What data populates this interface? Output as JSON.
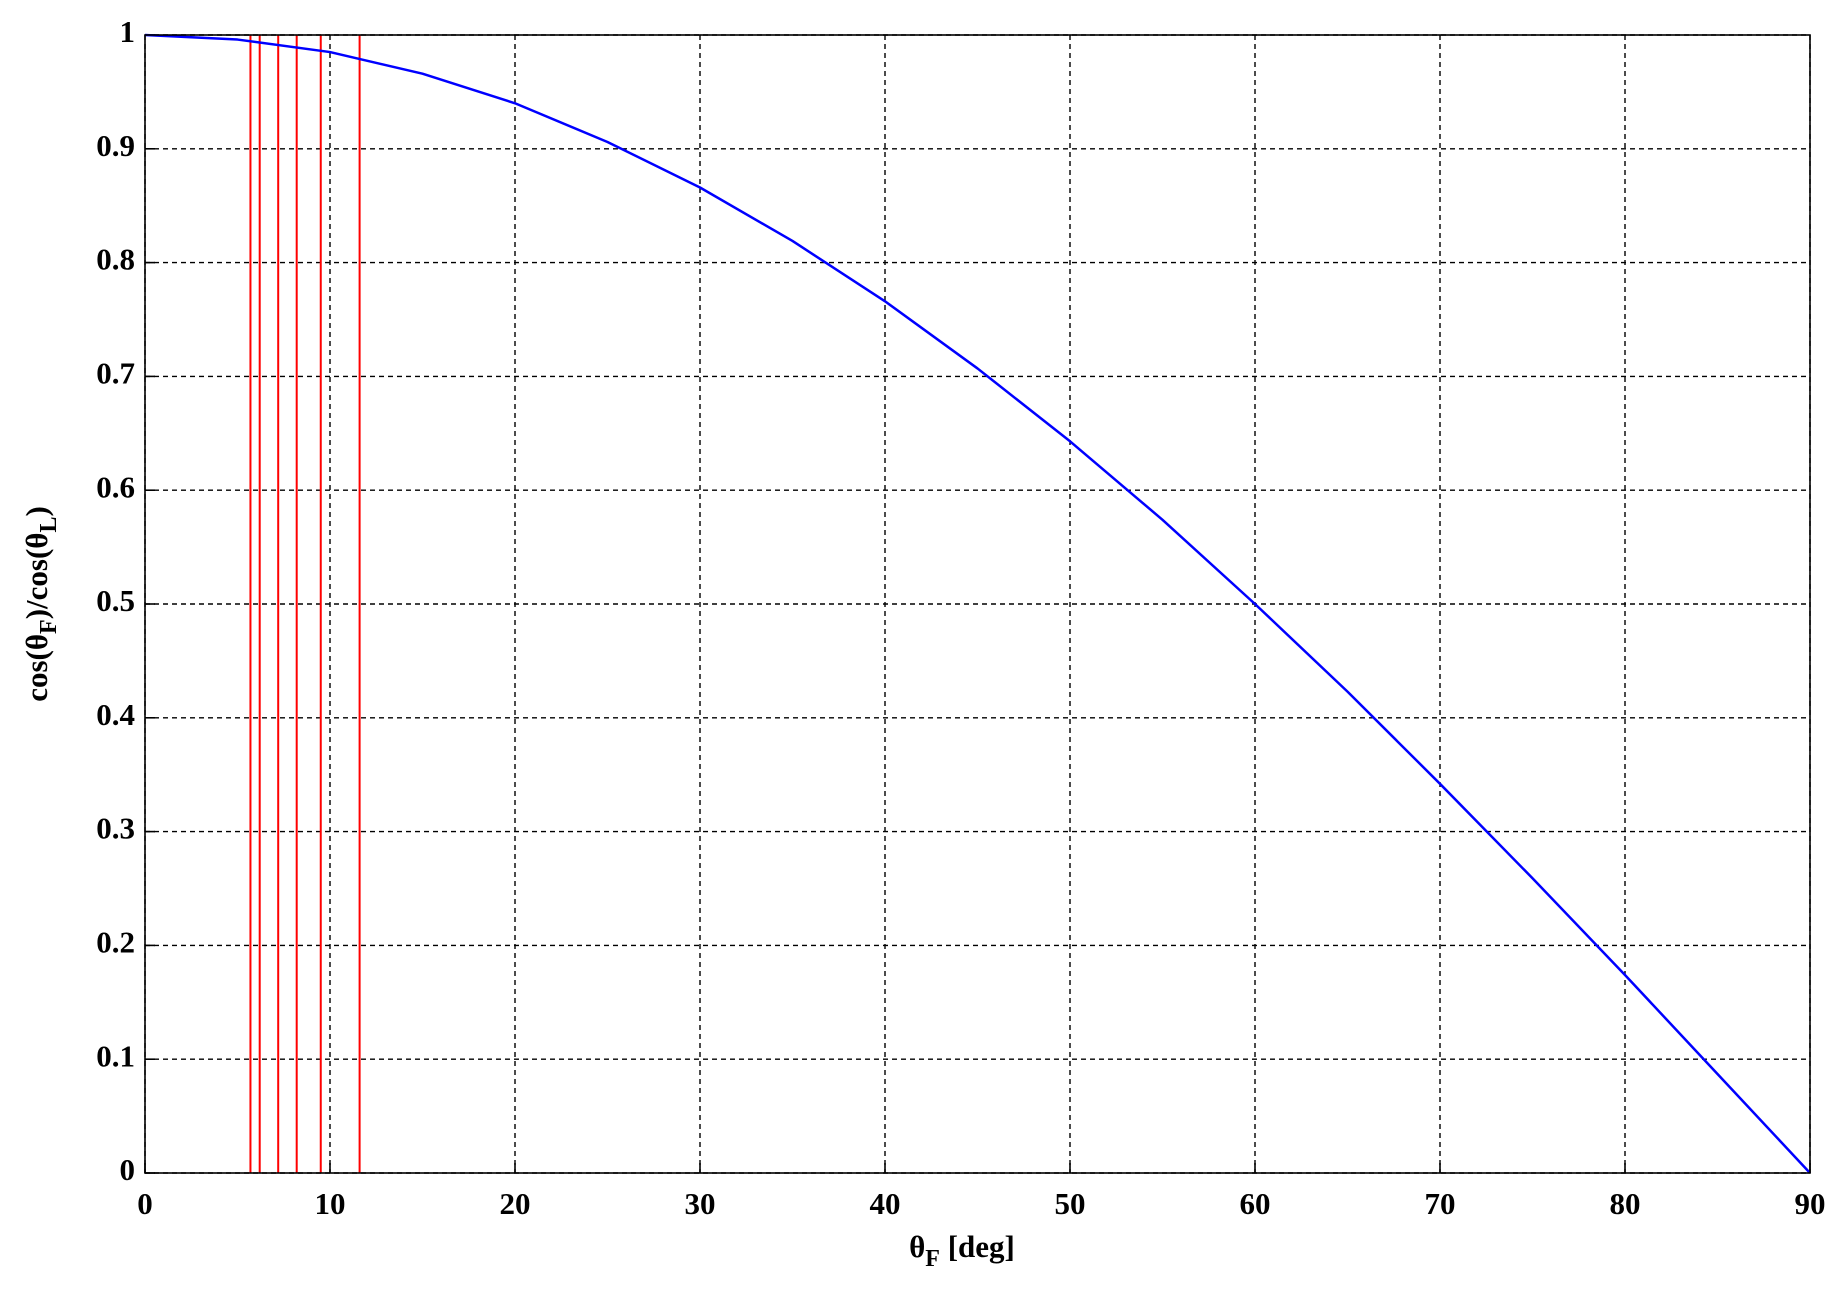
{
  "chart_data": {
    "type": "line",
    "xlabel": [
      "θ",
      "F",
      " [deg]"
    ],
    "ylabel": [
      "cos(θ",
      "F",
      ")/cos(θ",
      "L",
      ")"
    ],
    "x": [
      0,
      5,
      10,
      15,
      20,
      25,
      30,
      35,
      40,
      45,
      50,
      55,
      60,
      65,
      70,
      75,
      80,
      85,
      90
    ],
    "series": [
      {
        "color": "#0000ff",
        "values": [
          1,
          0.996,
          0.985,
          0.966,
          0.94,
          0.906,
          0.866,
          0.819,
          0.766,
          0.707,
          0.643,
          0.574,
          0.5,
          0.423,
          0.342,
          0.259,
          0.174,
          0.087,
          0
        ]
      }
    ],
    "vlines": {
      "color": "#ff0000",
      "values": [
        5.7,
        6.2,
        7.2,
        8.2,
        9.5,
        11.6
      ]
    },
    "xlim": [
      0,
      90
    ],
    "xticks": [
      0,
      10,
      20,
      30,
      40,
      50,
      60,
      70,
      80,
      90
    ],
    "ylim": [
      0,
      1
    ],
    "yticks": [
      0,
      0.1,
      0.2,
      0.3,
      0.4,
      0.5,
      0.6,
      0.7,
      0.8,
      0.9,
      1
    ],
    "grid": true
  }
}
